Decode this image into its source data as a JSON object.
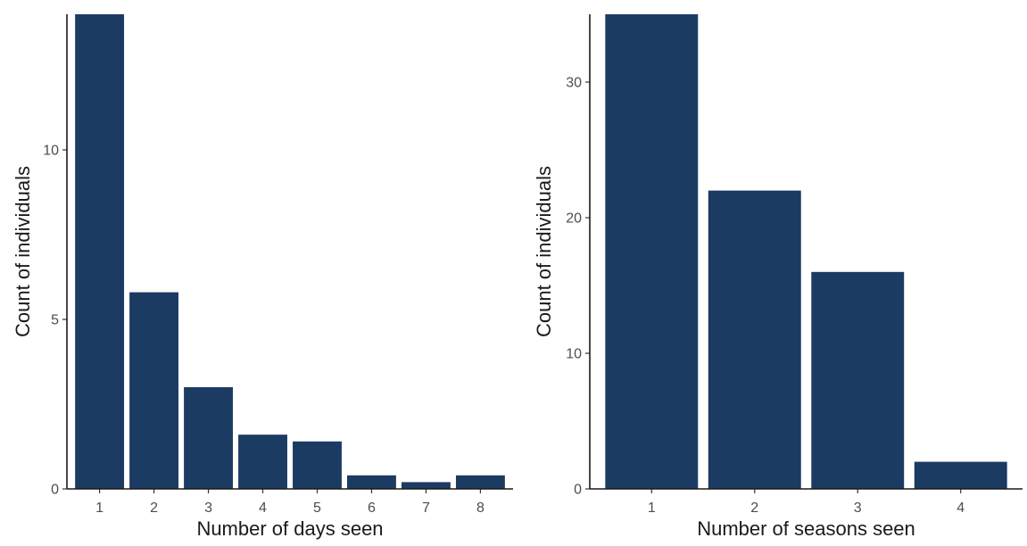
{
  "chart_data": [
    {
      "type": "bar",
      "xlabel": "Number of days seen",
      "ylabel": "Count of individuals",
      "categories": [
        "1",
        "2",
        "3",
        "4",
        "5",
        "6",
        "7",
        "8"
      ],
      "values": [
        14,
        5.8,
        3,
        1.6,
        1.4,
        0.4,
        0.2,
        0.4
      ],
      "ylim": [
        0,
        14
      ],
      "yticks": [
        0,
        5,
        10
      ],
      "grid": false,
      "bar_color": "#1c3b63"
    },
    {
      "type": "bar",
      "xlabel": "Number of seasons seen",
      "ylabel": "Count of individuals",
      "categories": [
        "1",
        "2",
        "3",
        "4"
      ],
      "values": [
        35,
        22,
        16,
        2
      ],
      "ylim": [
        0,
        35
      ],
      "yticks": [
        0,
        10,
        20,
        30
      ],
      "grid": false,
      "bar_color": "#1c3b63"
    }
  ]
}
